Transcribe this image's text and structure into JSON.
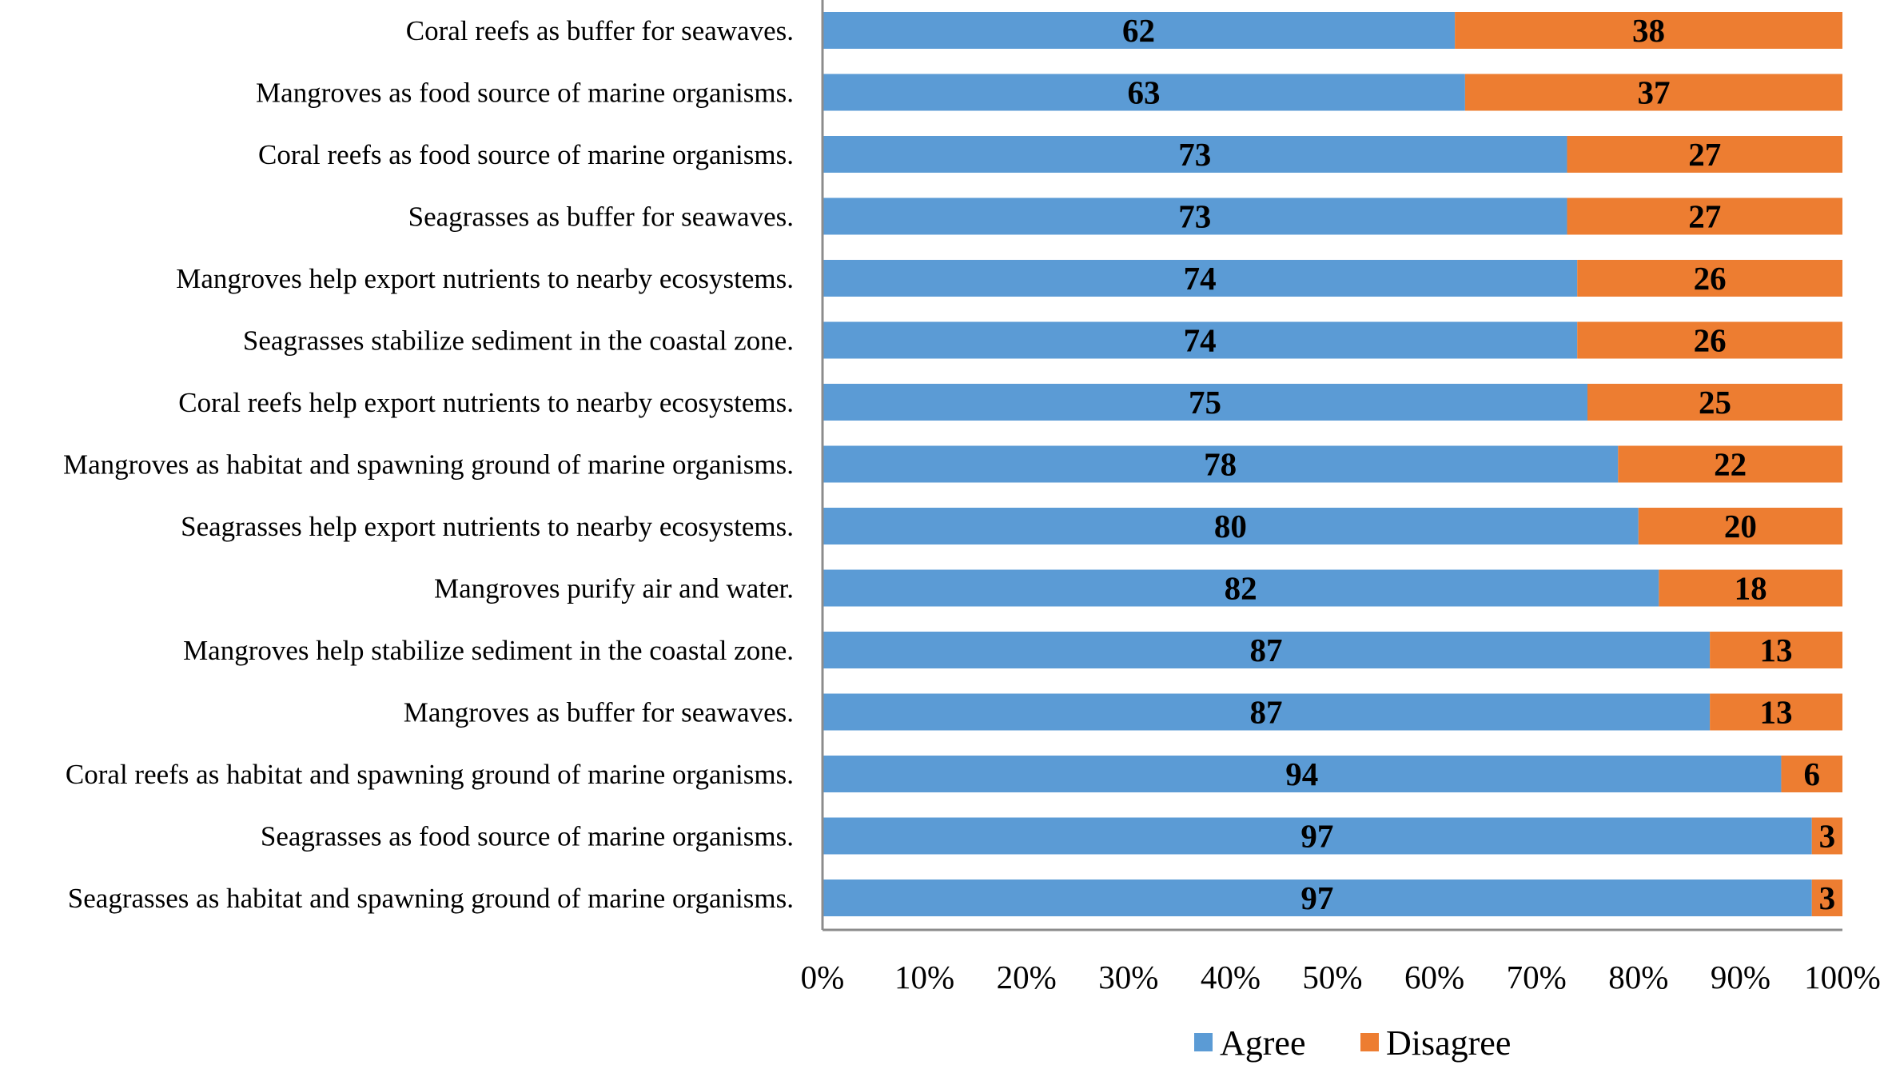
{
  "chart_data": {
    "type": "bar",
    "orientation": "horizontal",
    "stacked": true,
    "percent_stacked": true,
    "categories": [
      "Coral reefs as buffer for seawaves.",
      "Mangroves as food source of marine organisms.",
      "Coral reefs as food source of marine organisms.",
      "Seagrasses as buffer for seawaves.",
      "Mangroves help export nutrients to nearby ecosystems.",
      "Seagrasses stabilize sediment in the coastal zone.",
      "Coral reefs help export nutrients to nearby ecosystems.",
      "Mangroves as habitat and spawning ground of marine organisms.",
      "Seagrasses help export nutrients to nearby ecosystems.",
      "Mangroves purify air and water.",
      "Mangroves help stabilize sediment in the coastal zone.",
      "Mangroves as buffer for seawaves.",
      "Coral reefs as habitat and spawning ground of marine organisms.",
      "Seagrasses as food source of marine organisms.",
      "Seagrasses as habitat and spawning ground of marine organisms."
    ],
    "series": [
      {
        "name": "Agree",
        "color": "#5b9bd5",
        "values": [
          62,
          63,
          73,
          73,
          74,
          74,
          75,
          78,
          80,
          82,
          87,
          87,
          94,
          97,
          97
        ]
      },
      {
        "name": "Disagree",
        "color": "#ed7d31",
        "values": [
          38,
          37,
          27,
          27,
          26,
          26,
          25,
          22,
          20,
          18,
          13,
          13,
          6,
          3,
          3
        ]
      }
    ],
    "x_ticks": [
      "0%",
      "10%",
      "20%",
      "30%",
      "40%",
      "50%",
      "60%",
      "70%",
      "80%",
      "90%",
      "100%"
    ],
    "xlim": [
      0,
      100
    ],
    "grid": false,
    "legend_position": "bottom",
    "data_labels": true
  }
}
